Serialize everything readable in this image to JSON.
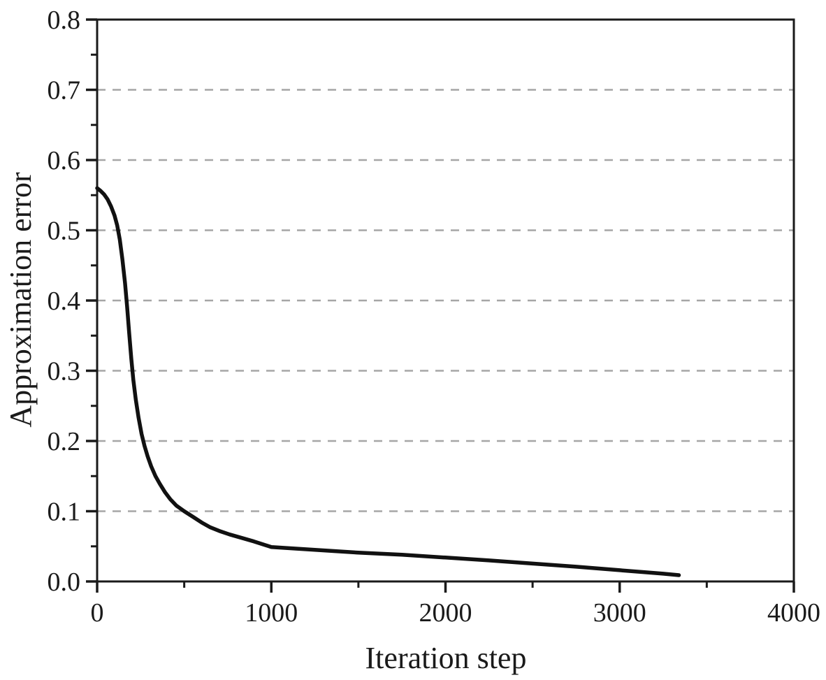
{
  "chart_data": {
    "type": "line",
    "title": "",
    "xlabel": "Iteration step",
    "ylabel": "Approximation error",
    "xlim": [
      0,
      4000
    ],
    "ylim": [
      0,
      0.8
    ],
    "x_ticks": [
      0,
      1000,
      2000,
      3000,
      4000
    ],
    "x_tick_labels": [
      "0",
      "1000",
      "2000",
      "3000",
      "4000"
    ],
    "x_minor_ticks": [
      500,
      1500,
      2500,
      3500
    ],
    "y_ticks": [
      0,
      0.1,
      0.2,
      0.3,
      0.4,
      0.5,
      0.6,
      0.7,
      0.8
    ],
    "y_tick_labels": [
      "0.0",
      "0.1",
      "0.2",
      "0.3",
      "0.4",
      "0.5",
      "0.6",
      "0.7",
      "0.8"
    ],
    "y_minor_ticks": [
      0.05,
      0.15,
      0.25,
      0.35,
      0.45,
      0.55,
      0.65,
      0.75
    ],
    "y_gridlines": [
      0.1,
      0.2,
      0.3,
      0.4,
      0.5,
      0.6,
      0.7
    ],
    "grid_style": "dashed",
    "grid_on": true,
    "legend_position": "none",
    "colors": {
      "curve": "#111111",
      "axis": "#1a1a1a",
      "grid": "#a6a6a6",
      "background": "#ffffff"
    },
    "series": [
      {
        "name": "approximation error vs iteration step",
        "points": [
          [
            0,
            0.56
          ],
          [
            20,
            0.556
          ],
          [
            40,
            0.551
          ],
          [
            60,
            0.544
          ],
          [
            80,
            0.534
          ],
          [
            100,
            0.521
          ],
          [
            115,
            0.507
          ],
          [
            130,
            0.487
          ],
          [
            145,
            0.459
          ],
          [
            160,
            0.425
          ],
          [
            172,
            0.391
          ],
          [
            184,
            0.353
          ],
          [
            196,
            0.317
          ],
          [
            208,
            0.287
          ],
          [
            222,
            0.259
          ],
          [
            238,
            0.233
          ],
          [
            255,
            0.21
          ],
          [
            272,
            0.193
          ],
          [
            290,
            0.178
          ],
          [
            310,
            0.164
          ],
          [
            335,
            0.15
          ],
          [
            360,
            0.139
          ],
          [
            390,
            0.127
          ],
          [
            420,
            0.117
          ],
          [
            455,
            0.108
          ],
          [
            500,
            0.1
          ],
          [
            550,
            0.092
          ],
          [
            600,
            0.084
          ],
          [
            650,
            0.077
          ],
          [
            700,
            0.072
          ],
          [
            760,
            0.067
          ],
          [
            830,
            0.062
          ],
          [
            900,
            0.057
          ],
          [
            950,
            0.053
          ],
          [
            1000,
            0.049
          ],
          [
            1125,
            0.047
          ],
          [
            1250,
            0.045
          ],
          [
            1375,
            0.043
          ],
          [
            1500,
            0.041
          ],
          [
            1625,
            0.0395
          ],
          [
            1750,
            0.038
          ],
          [
            2000,
            0.034
          ],
          [
            2250,
            0.03
          ],
          [
            2500,
            0.0255
          ],
          [
            2750,
            0.021
          ],
          [
            3000,
            0.016
          ],
          [
            3150,
            0.013
          ],
          [
            3250,
            0.011
          ],
          [
            3340,
            0.009
          ]
        ]
      }
    ]
  }
}
